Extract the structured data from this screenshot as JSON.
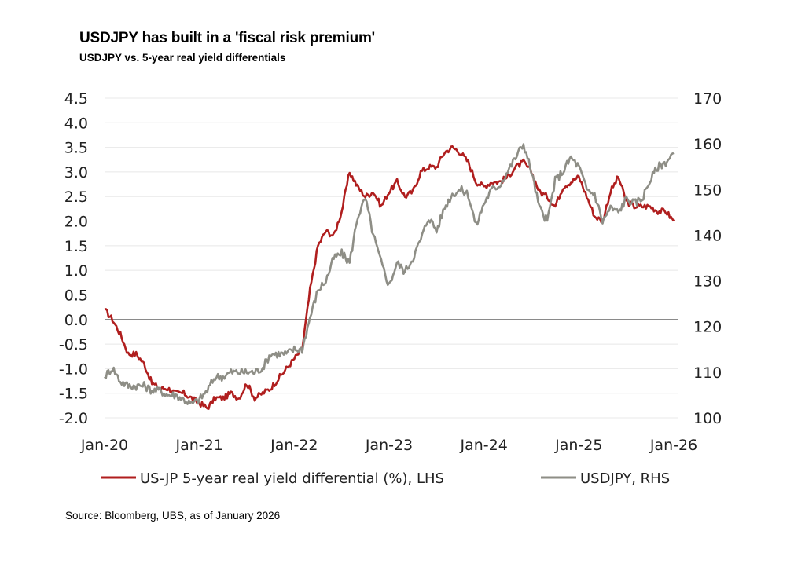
{
  "title": "USDJPY has built in a 'fiscal risk premium'",
  "subtitle": "USDJPY vs. 5-year real yield differentials",
  "source": "Source: Bloomberg, UBS, as of January 2026",
  "colors": {
    "red_series": "#b01e1e",
    "grey_series": "#8e8e86",
    "grid": "#e8e8e8",
    "zero_line": "#8a8a8a"
  },
  "chart_data": {
    "type": "line",
    "title": "USDJPY has built in a 'fiscal risk premium'",
    "subtitle": "USDJPY vs. 5-year real yield differentials",
    "xlabel": "",
    "ylabel_left": "US-JP 5-year real yield differential (%)",
    "ylabel_right": "USDJPY",
    "x_ticks": [
      "Jan-20",
      "Jan-21",
      "Jan-22",
      "Jan-23",
      "Jan-24",
      "Jan-25",
      "Jan-26"
    ],
    "x_range": [
      "2020-01",
      "2026-01"
    ],
    "ylim_left": [
      -2.0,
      4.5
    ],
    "yticks_left": [
      "4.5",
      "4.0",
      "3.5",
      "3.0",
      "2.5",
      "2.0",
      "1.5",
      "1.0",
      "0.5",
      "0.0",
      "-0.5",
      "-1.0",
      "-1.5",
      "-2.0"
    ],
    "ylim_right": [
      100,
      170
    ],
    "yticks_right": [
      "170",
      "160",
      "150",
      "140",
      "130",
      "120",
      "110",
      "100"
    ],
    "grid": true,
    "legend_position": "bottom",
    "x_months": [
      "2020-01",
      "2020-02",
      "2020-03",
      "2020-04",
      "2020-05",
      "2020-06",
      "2020-07",
      "2020-08",
      "2020-09",
      "2020-10",
      "2020-11",
      "2020-12",
      "2021-01",
      "2021-02",
      "2021-03",
      "2021-04",
      "2021-05",
      "2021-06",
      "2021-07",
      "2021-08",
      "2021-09",
      "2021-10",
      "2021-11",
      "2021-12",
      "2022-01",
      "2022-02",
      "2022-03",
      "2022-04",
      "2022-05",
      "2022-06",
      "2022-07",
      "2022-08",
      "2022-09",
      "2022-10",
      "2022-11",
      "2022-12",
      "2023-01",
      "2023-02",
      "2023-03",
      "2023-04",
      "2023-05",
      "2023-06",
      "2023-07",
      "2023-08",
      "2023-09",
      "2023-10",
      "2023-11",
      "2023-12",
      "2024-01",
      "2024-02",
      "2024-03",
      "2024-04",
      "2024-05",
      "2024-06",
      "2024-07",
      "2024-08",
      "2024-09",
      "2024-10",
      "2024-11",
      "2024-12",
      "2025-01",
      "2025-02",
      "2025-03",
      "2025-04",
      "2025-05",
      "2025-06",
      "2025-07",
      "2025-08",
      "2025-09",
      "2025-10",
      "2025-11",
      "2025-12",
      "2026-01"
    ],
    "series": [
      {
        "name": "US-JP 5-year real yield differential (%), LHS",
        "axis": "left",
        "color": "#b01e1e",
        "values": [
          0.2,
          0.0,
          -0.3,
          -0.7,
          -0.7,
          -0.9,
          -1.3,
          -1.4,
          -1.4,
          -1.5,
          -1.5,
          -1.6,
          -1.7,
          -1.8,
          -1.6,
          -1.6,
          -1.5,
          -1.6,
          -1.3,
          -1.6,
          -1.5,
          -1.4,
          -1.2,
          -1.0,
          -0.8,
          -0.6,
          0.6,
          1.5,
          1.8,
          1.7,
          2.2,
          3.0,
          2.7,
          2.5,
          2.6,
          2.3,
          2.6,
          2.8,
          2.5,
          2.6,
          3.0,
          3.1,
          3.1,
          3.4,
          3.5,
          3.4,
          3.2,
          2.8,
          2.7,
          2.8,
          2.8,
          2.9,
          3.1,
          3.2,
          3.0,
          2.6,
          2.5,
          2.3,
          2.7,
          2.8,
          2.9,
          2.5,
          2.1,
          2.0,
          2.6,
          2.9,
          2.4,
          2.3,
          2.3,
          2.3,
          2.2,
          2.2,
          2.0
        ]
      },
      {
        "name": "USDJPY, RHS",
        "axis": "right",
        "color": "#8e8e86",
        "values": [
          109,
          111,
          108,
          107,
          107,
          107,
          106,
          106,
          105,
          105,
          104,
          103,
          104,
          106,
          109,
          109,
          110,
          110,
          110,
          110,
          111,
          114,
          114,
          114,
          115,
          115,
          122,
          128,
          130,
          135,
          136,
          134,
          144,
          148,
          140,
          134,
          129,
          134,
          132,
          135,
          139,
          144,
          141,
          146,
          149,
          150,
          149,
          142,
          147,
          150,
          151,
          154,
          157,
          160,
          154,
          146,
          143,
          152,
          154,
          157,
          155,
          150,
          149,
          143,
          146,
          145,
          148,
          147,
          148,
          152,
          155,
          156,
          158
        ]
      }
    ]
  },
  "legend": [
    {
      "label": "US-JP 5-year real yield differential (%), LHS",
      "color": "#b01e1e"
    },
    {
      "label": "USDJPY, RHS",
      "color": "#8e8e86"
    }
  ]
}
